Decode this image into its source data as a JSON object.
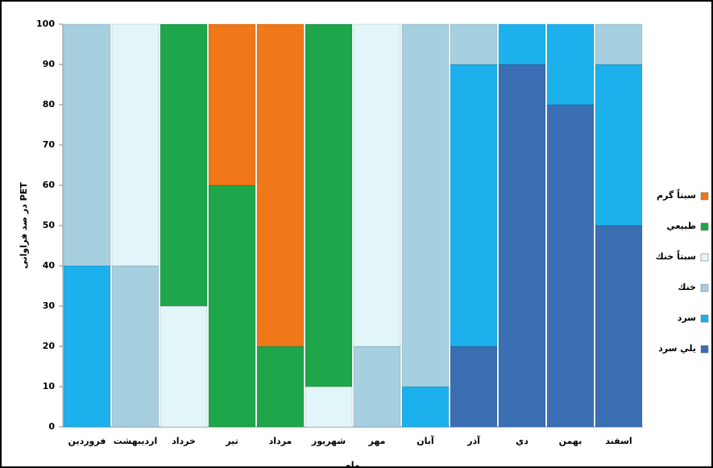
{
  "chart_data": {
    "type": "stacked_bar",
    "y_label": "در صد فراوانی PET",
    "x_label": "ماه",
    "categories": [
      "فروردين",
      "ارديبهشت",
      "خرداد",
      "تير",
      "مرداد",
      "شهريور",
      "مهر",
      "آبان",
      "آذر",
      "دي",
      "بهمن",
      "اسفند"
    ],
    "series": [
      {
        "name": "يلي سرد",
        "color": "#3a6fb4",
        "values": [
          0,
          0,
          0,
          0,
          0,
          0,
          0,
          0,
          20,
          90,
          80,
          50
        ]
      },
      {
        "name": "سرد",
        "color": "#1cb1ec",
        "values": [
          40,
          0,
          0,
          0,
          0,
          0,
          0,
          10,
          70,
          10,
          20,
          40
        ]
      },
      {
        "name": "خنك",
        "color": "#a6d0e0",
        "values": [
          60,
          40,
          0,
          0,
          0,
          0,
          20,
          90,
          10,
          0,
          0,
          10
        ]
      },
      {
        "name": "سبتاً خنك",
        "color": "#e2f5f9",
        "values": [
          0,
          60,
          30,
          0,
          0,
          10,
          80,
          0,
          0,
          0,
          0,
          0
        ]
      },
      {
        "name": "طبيعي",
        "color": "#1fa64a",
        "values": [
          0,
          0,
          70,
          60,
          20,
          90,
          0,
          0,
          0,
          0,
          0,
          0
        ]
      },
      {
        "name": "سبتاً گرم",
        "color": "#f07818",
        "values": [
          0,
          0,
          0,
          40,
          80,
          0,
          0,
          0,
          0,
          0,
          0,
          0
        ]
      }
    ],
    "ylim": [
      0,
      100
    ],
    "yticks": [
      0,
      10,
      20,
      30,
      40,
      50,
      60,
      70,
      80,
      90,
      100
    ],
    "legend": "right"
  }
}
